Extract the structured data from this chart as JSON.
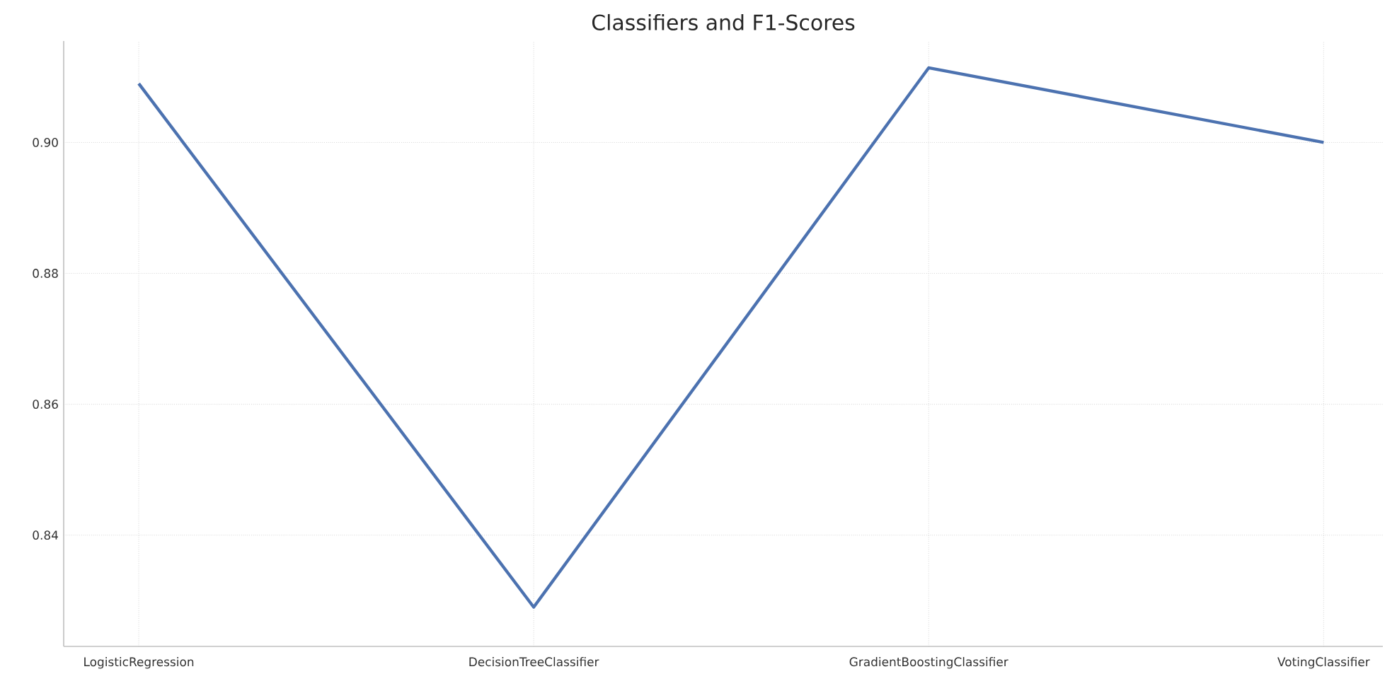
{
  "chart_data": {
    "type": "line",
    "title": "Classifiers and F1-Scores",
    "categories": [
      "LogisticRegression",
      "DecisionTreeClassifier",
      "GradientBoostingClassifier",
      "VotingClassifier"
    ],
    "series": [
      {
        "color": "#4c72b0",
        "values": [
          0.909,
          0.829,
          0.9114,
          0.9
        ]
      }
    ],
    "ylim": [
      0.823,
      0.9155
    ],
    "yticks": [
      0.84,
      0.86,
      0.88,
      {
        "value": 0.9,
        "label": "0.90"
      }
    ],
    "grid": true,
    "marker": "none",
    "line_style": "solid"
  }
}
